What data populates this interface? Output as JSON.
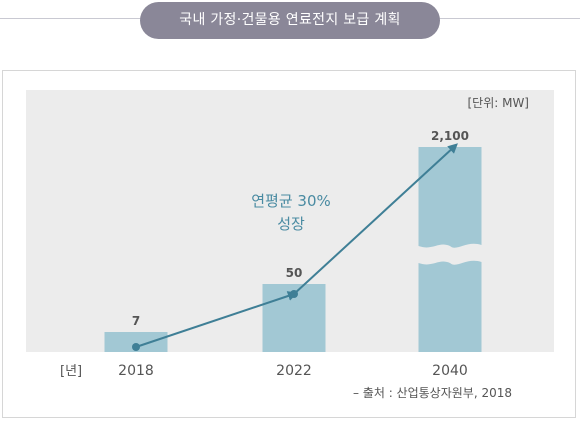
{
  "title": "국내 가정·건물용 연료전지 보급 계획",
  "unit_label": "[단위: MW]",
  "x_axis_label": "[년]",
  "growth_label": {
    "line1": "연평균 30%",
    "line2": "성장"
  },
  "source_note": "– 출처 : 산업통상자원부, 2018",
  "chart_data": {
    "type": "bar",
    "categories": [
      "2018",
      "2022",
      "2040"
    ],
    "values": [
      7,
      50,
      2100
    ],
    "value_labels": [
      "7",
      "50",
      "2,100"
    ],
    "axis_break": true,
    "trend_line": true,
    "colors": {
      "bar": "#a2c8d4",
      "line": "#3f7f96",
      "panel": "#ececec",
      "text": "#555555",
      "accent": "#4a8ba2"
    }
  }
}
